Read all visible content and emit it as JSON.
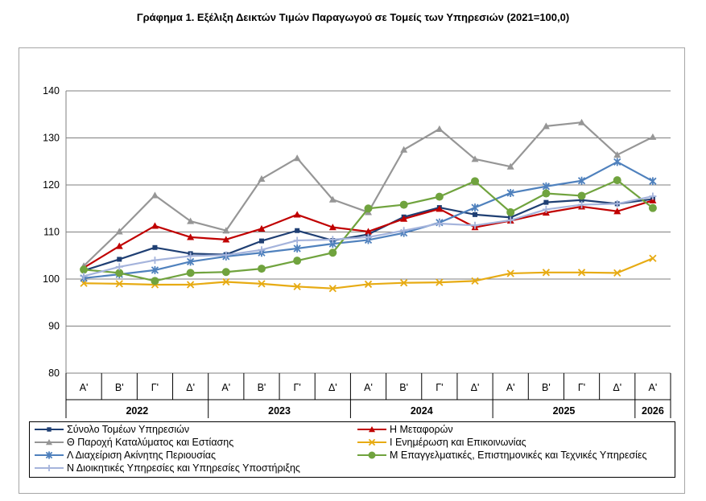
{
  "chart_data": {
    "type": "line",
    "title": "Γράφημα 1. Εξέλιξη Δεικτών Τιμών Παραγωγού σε Τομείς των Υπηρεσιών (2021=100,0)",
    "xlabel": "",
    "ylabel": "",
    "ylim": [
      80,
      140
    ],
    "yticks": [
      80,
      90,
      100,
      110,
      120,
      130,
      140
    ],
    "grid": true,
    "legend_position": "bottom",
    "categories": [
      "Α'",
      "Β'",
      "Γ'",
      "Δ'",
      "Α'",
      "Β'",
      "Γ'",
      "Δ'",
      "Α'",
      "Β'",
      "Γ'",
      "Δ'",
      "Α'",
      "Β'",
      "Γ'",
      "Δ'",
      "Α'"
    ],
    "years": [
      {
        "label": "2022",
        "span": 4
      },
      {
        "label": "2023",
        "span": 4
      },
      {
        "label": "2024",
        "span": 4
      },
      {
        "label": "2025",
        "span": 4
      },
      {
        "label": "2026",
        "span": 1
      }
    ],
    "series": [
      {
        "name": "Σύνολο Τομέων Υπηρεσιών",
        "color": "#1f3f73",
        "marker": "square",
        "values": [
          101.8,
          104.2,
          106.7,
          105.4,
          105.2,
          108.1,
          110.3,
          108.2,
          109.5,
          113.2,
          115.2,
          113.7,
          113.1,
          116.3,
          116.8,
          116.0,
          117.0
        ]
      },
      {
        "name": "Η Μεταφορών",
        "color": "#c00000",
        "marker": "triangle",
        "values": [
          102.4,
          107.0,
          111.3,
          108.9,
          108.4,
          110.7,
          113.7,
          111.0,
          110.1,
          112.8,
          114.9,
          111.0,
          112.4,
          114.1,
          115.4,
          114.4,
          116.7
        ]
      },
      {
        "name": "Θ Παροχή Καταλύματος και Εστίασης",
        "color": "#969696",
        "marker": "triangle",
        "values": [
          102.8,
          110.1,
          117.8,
          112.3,
          110.3,
          121.3,
          125.7,
          116.9,
          114.2,
          127.5,
          131.9,
          125.5,
          123.9,
          132.5,
          133.3,
          126.4,
          130.2
        ]
      },
      {
        "name": "Ι Ενημέρωση και Επικοινωνίας",
        "color": "#e7ab13",
        "marker": "x",
        "values": [
          99.1,
          99.0,
          98.8,
          98.8,
          99.4,
          99.0,
          98.4,
          98.0,
          98.9,
          99.2,
          99.3,
          99.6,
          101.2,
          101.4,
          101.4,
          101.3,
          104.4
        ]
      },
      {
        "name": "Λ Διαχείριση Ακίνητης Περιουσίας",
        "color": "#4f81bd",
        "marker": "asterisk",
        "values": [
          100.2,
          101.0,
          101.9,
          103.7,
          104.8,
          105.6,
          106.5,
          107.5,
          108.3,
          109.8,
          112.0,
          115.2,
          118.3,
          119.7,
          120.9,
          124.9,
          120.8
        ]
      },
      {
        "name": "Μ Επαγγελματικές, Επιστημονικές και Τεχνικές Υπηρεσίες",
        "color": "#70a33e",
        "marker": "circle",
        "values": [
          102.0,
          101.3,
          99.6,
          101.3,
          101.5,
          102.2,
          103.9,
          105.6,
          115.0,
          115.8,
          117.5,
          120.8,
          114.2,
          118.2,
          117.7,
          121.0,
          115.1
        ]
      },
      {
        "name": "Ν Διοικητικές Υπηρεσίες και Υπηρεσίες Υποστήριξης",
        "color": "#a5b4dc",
        "marker": "plus",
        "values": [
          100.6,
          102.6,
          104.0,
          104.9,
          105.1,
          106.2,
          108.2,
          108.4,
          108.9,
          110.3,
          111.8,
          111.4,
          112.5,
          114.8,
          115.8,
          116.0,
          117.6
        ]
      }
    ]
  }
}
